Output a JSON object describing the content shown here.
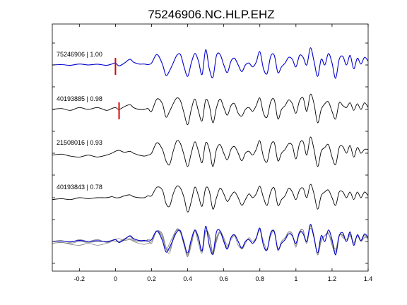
{
  "chart_data": {
    "type": "line",
    "title": "75246906.NC.HLP.EHZ",
    "xlabel": "",
    "ylabel": "",
    "xlim": [
      -0.35,
      1.4
    ],
    "xticks": [
      -0.2,
      0,
      0.2,
      0.4,
      0.6,
      0.8,
      1,
      1.2,
      1.4
    ],
    "xtick_labels": [
      "-0.2",
      "0",
      "0.2",
      "0.4",
      "0.6",
      "0.8",
      "1",
      "1.2",
      "1.4"
    ],
    "grid": false,
    "colors": {
      "reference": "#0000cc",
      "other": "#000000",
      "overlay_other": "#808080",
      "pick": "#dd0000"
    },
    "series": [
      {
        "label": "75246906 | 1.00",
        "color": "#0000cc",
        "pick_time": 0.0,
        "x": [
          -0.35,
          -0.3,
          -0.25,
          -0.2,
          -0.15,
          -0.1,
          -0.05,
          -0.02,
          0.0,
          0.02,
          0.05,
          0.08,
          0.1,
          0.13,
          0.16,
          0.18,
          0.2,
          0.23,
          0.26,
          0.28,
          0.3,
          0.32,
          0.34,
          0.36,
          0.38,
          0.4,
          0.42,
          0.44,
          0.46,
          0.48,
          0.5,
          0.52,
          0.54,
          0.56,
          0.58,
          0.6,
          0.62,
          0.64,
          0.66,
          0.68,
          0.7,
          0.72,
          0.74,
          0.76,
          0.78,
          0.8,
          0.82,
          0.84,
          0.86,
          0.88,
          0.9,
          0.92,
          0.94,
          0.96,
          0.98,
          1.0,
          1.02,
          1.04,
          1.06,
          1.08,
          1.1,
          1.12,
          1.14,
          1.16,
          1.18,
          1.2,
          1.22,
          1.24,
          1.26,
          1.28,
          1.3,
          1.32,
          1.34,
          1.36,
          1.38,
          1.4
        ],
        "y": [
          0.0,
          0.02,
          -0.02,
          0.05,
          0.0,
          0.04,
          -0.02,
          0.05,
          0.1,
          -0.05,
          0.1,
          0.3,
          0.15,
          0.05,
          0.05,
          0.02,
          0.1,
          0.55,
          0.05,
          -0.55,
          -0.3,
          0.1,
          0.5,
          0.55,
          -0.1,
          -0.6,
          0.1,
          0.6,
          0.2,
          -0.5,
          0.8,
          -0.2,
          -0.65,
          0.5,
          0.55,
          0.0,
          -0.4,
          0.2,
          0.35,
          0.0,
          -0.35,
          0.0,
          0.1,
          -0.1,
          0.15,
          0.7,
          -0.2,
          -0.45,
          0.45,
          0.5,
          -0.4,
          -0.1,
          0.1,
          0.4,
          0.3,
          -0.1,
          0.5,
          0.4,
          0.0,
          0.9,
          0.2,
          -0.6,
          0.3,
          0.0,
          0.6,
          0.1,
          -0.7,
          0.3,
          0.45,
          0.0,
          0.5,
          -0.2,
          0.35,
          0.05,
          0.4,
          0.2
        ]
      },
      {
        "label": "40193885 | 0.98",
        "color": "#000000",
        "pick_time": 0.02,
        "x": [
          -0.35,
          -0.3,
          -0.25,
          -0.2,
          -0.15,
          -0.1,
          -0.05,
          -0.02,
          0.0,
          0.02,
          0.05,
          0.08,
          0.1,
          0.13,
          0.16,
          0.18,
          0.2,
          0.23,
          0.26,
          0.28,
          0.3,
          0.32,
          0.34,
          0.36,
          0.38,
          0.4,
          0.42,
          0.44,
          0.46,
          0.48,
          0.5,
          0.52,
          0.54,
          0.56,
          0.58,
          0.6,
          0.62,
          0.64,
          0.66,
          0.68,
          0.7,
          0.72,
          0.74,
          0.76,
          0.78,
          0.8,
          0.82,
          0.84,
          0.86,
          0.88,
          0.9,
          0.92,
          0.94,
          0.96,
          0.98,
          1.0,
          1.02,
          1.04,
          1.06,
          1.08,
          1.1,
          1.12,
          1.14,
          1.16,
          1.18,
          1.2,
          1.22,
          1.24,
          1.26,
          1.28,
          1.3,
          1.32,
          1.34,
          1.36,
          1.38,
          1.4
        ],
        "y": [
          0.0,
          0.05,
          -0.05,
          0.1,
          0.0,
          0.1,
          -0.05,
          0.05,
          0.1,
          0.0,
          0.15,
          0.25,
          0.1,
          0.0,
          0.0,
          0.05,
          -0.1,
          0.55,
          0.3,
          -0.4,
          -0.1,
          0.3,
          0.6,
          0.45,
          -0.2,
          -0.8,
          0.0,
          0.55,
          -0.1,
          -0.6,
          0.5,
          0.2,
          -0.7,
          0.1,
          0.55,
          0.1,
          -0.3,
          0.2,
          0.3,
          -0.2,
          -0.35,
          0.0,
          0.1,
          -0.1,
          0.2,
          0.6,
          -0.2,
          -0.4,
          0.4,
          0.5,
          -0.5,
          0.0,
          0.2,
          0.5,
          0.3,
          -0.2,
          0.45,
          0.6,
          -0.1,
          0.8,
          0.3,
          -0.7,
          0.0,
          0.3,
          0.4,
          -0.1,
          -0.5,
          0.35,
          0.2,
          0.1,
          0.35,
          -0.05,
          0.3,
          0.0,
          0.35,
          0.1
        ]
      },
      {
        "label": "21508016 | 0.93",
        "color": "#000000",
        "pick_time": null,
        "x": [
          -0.35,
          -0.3,
          -0.25,
          -0.2,
          -0.15,
          -0.1,
          -0.05,
          -0.02,
          0.0,
          0.02,
          0.05,
          0.08,
          0.1,
          0.13,
          0.16,
          0.18,
          0.2,
          0.23,
          0.26,
          0.28,
          0.3,
          0.32,
          0.34,
          0.36,
          0.38,
          0.4,
          0.42,
          0.44,
          0.46,
          0.48,
          0.5,
          0.52,
          0.54,
          0.56,
          0.58,
          0.6,
          0.62,
          0.64,
          0.66,
          0.68,
          0.7,
          0.72,
          0.74,
          0.76,
          0.78,
          0.8,
          0.82,
          0.84,
          0.86,
          0.88,
          0.9,
          0.92,
          0.94,
          0.96,
          0.98,
          1.0,
          1.02,
          1.04,
          1.06,
          1.08,
          1.1,
          1.12,
          1.14,
          1.16,
          1.18,
          1.2,
          1.22,
          1.24,
          1.26,
          1.28,
          1.3,
          1.32,
          1.34,
          1.36,
          1.38,
          1.4
        ],
        "y": [
          -0.1,
          -0.05,
          -0.15,
          -0.2,
          -0.1,
          -0.2,
          -0.1,
          0.0,
          0.1,
          0.15,
          0.05,
          0.1,
          0.0,
          -0.1,
          -0.15,
          -0.1,
          0.0,
          0.55,
          0.2,
          -0.4,
          -0.6,
          0.1,
          0.65,
          0.5,
          -0.1,
          -0.7,
          0.0,
          0.6,
          0.1,
          -0.5,
          0.55,
          0.2,
          -0.7,
          0.2,
          0.45,
          0.0,
          -0.35,
          0.2,
          0.35,
          0.0,
          -0.4,
          0.0,
          0.1,
          -0.1,
          0.2,
          0.65,
          -0.2,
          -0.45,
          0.4,
          0.55,
          -0.4,
          0.0,
          0.2,
          0.5,
          0.4,
          -0.3,
          0.5,
          0.6,
          -0.1,
          0.85,
          0.2,
          -0.7,
          0.1,
          0.3,
          0.45,
          -0.2,
          -0.6,
          0.3,
          0.35,
          0.0,
          0.4,
          -0.2,
          0.3,
          0.0,
          0.2,
          0.2
        ]
      },
      {
        "label": "40193843 | 0.78",
        "color": "#000000",
        "pick_time": null,
        "x": [
          -0.35,
          -0.3,
          -0.25,
          -0.2,
          -0.15,
          -0.1,
          -0.05,
          -0.02,
          0.0,
          0.02,
          0.05,
          0.08,
          0.1,
          0.13,
          0.16,
          0.18,
          0.2,
          0.23,
          0.26,
          0.28,
          0.3,
          0.32,
          0.34,
          0.36,
          0.38,
          0.4,
          0.42,
          0.44,
          0.46,
          0.48,
          0.5,
          0.52,
          0.54,
          0.56,
          0.58,
          0.6,
          0.62,
          0.64,
          0.66,
          0.68,
          0.7,
          0.72,
          0.74,
          0.76,
          0.78,
          0.8,
          0.82,
          0.84,
          0.86,
          0.88,
          0.9,
          0.92,
          0.94,
          0.96,
          0.98,
          1.0,
          1.02,
          1.04,
          1.06,
          1.08,
          1.1,
          1.12,
          1.14,
          1.16,
          1.18,
          1.2,
          1.22,
          1.24,
          1.26,
          1.28,
          1.3,
          1.32,
          1.34,
          1.36,
          1.38,
          1.4
        ],
        "y": [
          -0.1,
          -0.05,
          -0.1,
          0.0,
          -0.05,
          0.0,
          0.0,
          0.05,
          0.0,
          0.0,
          0.1,
          0.15,
          0.05,
          0.0,
          0.0,
          0.1,
          0.1,
          0.55,
          0.4,
          -0.3,
          -0.45,
          0.2,
          0.6,
          0.5,
          0.0,
          -0.75,
          -0.2,
          0.55,
          0.1,
          -0.45,
          0.5,
          0.35,
          -0.6,
          0.0,
          0.5,
          0.2,
          -0.2,
          0.1,
          0.3,
          0.0,
          -0.4,
          -0.1,
          0.2,
          0.0,
          0.2,
          0.6,
          0.0,
          -0.4,
          0.3,
          0.5,
          -0.4,
          -0.1,
          0.1,
          0.5,
          0.3,
          -0.1,
          0.4,
          0.5,
          0.0,
          0.7,
          0.2,
          -0.6,
          0.1,
          0.3,
          0.4,
          0.0,
          -0.4,
          0.3,
          0.3,
          0.0,
          0.3,
          -0.1,
          0.3,
          0.0,
          0.3,
          0.1
        ]
      }
    ],
    "overlay": {
      "description_label": "",
      "series_order": [
        1,
        2,
        3,
        0
      ]
    }
  }
}
